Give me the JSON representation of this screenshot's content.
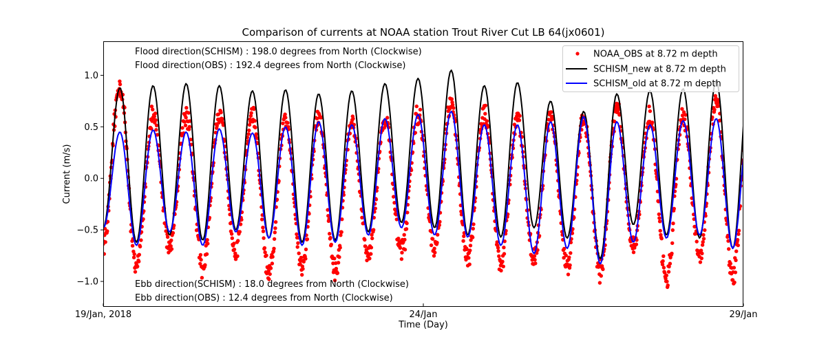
{
  "chart_data": {
    "type": "line",
    "title": "Comparison of currents at NOAA station Trout River Cut LB 64(jx0601)",
    "xlabel": "Time (Day)",
    "ylabel": "Current (m/s)",
    "xlim_days": [
      0,
      10
    ],
    "ylim": [
      -1.24,
      1.33
    ],
    "yticks": [
      -1.0,
      -0.5,
      0.0,
      0.5,
      1.0
    ],
    "ytick_labels": [
      "−1.0",
      "−0.5",
      "0.0",
      "0.5",
      "1.0"
    ],
    "xticks_days": [
      0,
      5,
      10
    ],
    "xtick_labels": [
      "19/Jan, 2018",
      "24/Jan",
      "29/Jan"
    ],
    "grid": false,
    "legend_position": "top-right",
    "annotations": {
      "flood_schism": "Flood direction(SCHISM) : 198.0 degrees from North (Clockwise)",
      "flood_obs": "Flood direction(OBS) : 192.4 degrees from North (Clockwise)",
      "ebb_schism": "Ebb direction(SCHISM) : 18.0 degrees from North (Clockwise)",
      "ebb_obs": "Ebb direction(OBS) : 12.4 degrees from North (Clockwise)"
    },
    "tidal_period_hours": 12.42,
    "cycle_day_offset": 0.26,
    "series": [
      {
        "name": "NOAA_OBS at 8.72 m depth",
        "style": "scatter",
        "color": "#ff0000",
        "peaks": [
          0.9,
          0.6,
          0.62,
          0.62,
          0.62,
          0.58,
          0.6,
          0.55,
          0.58,
          0.62,
          0.72,
          0.65,
          0.58,
          0.62,
          0.58,
          0.65,
          0.58,
          0.62,
          0.75,
          0.78
        ],
        "troughs": [
          -0.62,
          -0.85,
          -0.65,
          -0.87,
          -0.7,
          -0.95,
          -0.85,
          -0.9,
          -0.75,
          -0.72,
          -0.7,
          -0.78,
          -0.82,
          -0.8,
          -0.85,
          -0.9,
          -0.65,
          -0.98,
          -0.75,
          -0.95,
          -0.7
        ]
      },
      {
        "name": "SCHISM_new at 8.72 m depth",
        "style": "line",
        "color": "#000000",
        "peaks": [
          0.88,
          0.9,
          0.92,
          0.9,
          0.85,
          0.86,
          0.82,
          0.85,
          0.92,
          0.97,
          1.05,
          0.9,
          0.93,
          0.75,
          0.65,
          0.82,
          0.85,
          0.87,
          0.95,
          0.98
        ],
        "troughs": [
          -0.48,
          -0.62,
          -0.55,
          -0.6,
          -0.5,
          -0.58,
          -0.62,
          -0.6,
          -0.52,
          -0.43,
          -0.48,
          -0.55,
          -0.57,
          -0.48,
          -0.58,
          -0.78,
          -0.45,
          -0.55,
          -0.58,
          -0.68,
          -0.48
        ]
      },
      {
        "name": "SCHISM_old at 8.72 m depth",
        "style": "line",
        "color": "#0000ff",
        "peaks": [
          0.45,
          0.47,
          0.45,
          0.48,
          0.44,
          0.5,
          0.55,
          0.52,
          0.58,
          0.62,
          0.65,
          0.52,
          0.52,
          0.55,
          0.6,
          0.55,
          0.52,
          0.56,
          0.58,
          0.55
        ],
        "troughs": [
          -0.48,
          -0.65,
          -0.52,
          -0.65,
          -0.52,
          -0.58,
          -0.65,
          -0.62,
          -0.55,
          -0.48,
          -0.55,
          -0.57,
          -0.65,
          -0.73,
          -0.68,
          -0.83,
          -0.62,
          -0.58,
          -0.55,
          -0.68,
          -0.5
        ]
      }
    ]
  }
}
